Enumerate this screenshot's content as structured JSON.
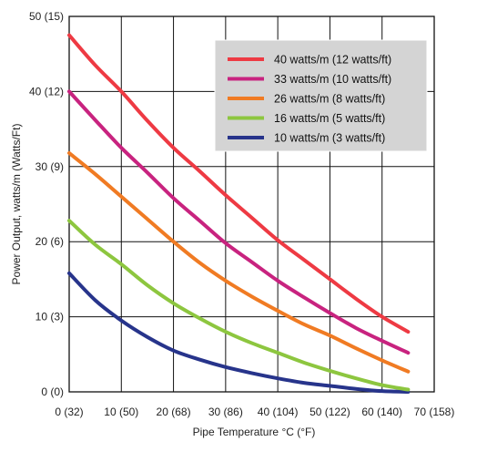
{
  "chart_data": {
    "type": "line",
    "title": "",
    "xlabel": "Pipe Temperature °C (°F)",
    "ylabel": "Power Output, watts/m (Watts/Ft)",
    "xlim": [
      0,
      70
    ],
    "ylim": [
      0,
      50
    ],
    "grid": true,
    "legend_position": "top-right",
    "x_ticks": [
      {
        "value": 0,
        "label": "0 (32)"
      },
      {
        "value": 10,
        "label": "10 (50)"
      },
      {
        "value": 20,
        "label": "20 (68)"
      },
      {
        "value": 30,
        "label": "30 (86)"
      },
      {
        "value": 40,
        "label": "40 (104)"
      },
      {
        "value": 50,
        "label": "50 (122)"
      },
      {
        "value": 60,
        "label": "60 (140)"
      },
      {
        "value": 70,
        "label": "70 (158)"
      }
    ],
    "y_ticks": [
      {
        "value": 0,
        "label": "0 (0)"
      },
      {
        "value": 10,
        "label": "10 (3)"
      },
      {
        "value": 20,
        "label": "20 (6)"
      },
      {
        "value": 30,
        "label": "30 (9)"
      },
      {
        "value": 40,
        "label": "40 (12)"
      },
      {
        "value": 50,
        "label": "50 (15)"
      }
    ],
    "x": [
      0,
      5,
      10,
      15,
      20,
      25,
      30,
      35,
      40,
      45,
      50,
      55,
      60,
      65
    ],
    "series": [
      {
        "name": "40 watts/m (12 watts/ft)",
        "color": "#ee3a43",
        "values": [
          47.5,
          43.5,
          40.0,
          36.1,
          32.5,
          29.4,
          26.2,
          23.2,
          20.2,
          17.6,
          15.0,
          12.4,
          10.0,
          8.0
        ]
      },
      {
        "name": "33 watts/m (10 watts/ft)",
        "color": "#c8237f",
        "values": [
          40.0,
          36.2,
          32.5,
          29.2,
          25.8,
          22.8,
          19.8,
          17.3,
          14.8,
          12.6,
          10.5,
          8.5,
          6.8,
          5.2
        ]
      },
      {
        "name": "26 watts/m (8 watts/ft)",
        "color": "#f07b23",
        "values": [
          31.8,
          29.0,
          26.0,
          23.0,
          20.0,
          17.2,
          14.8,
          12.7,
          10.8,
          9.0,
          7.5,
          5.8,
          4.2,
          2.7
        ]
      },
      {
        "name": "16 watts/m (5 watts/ft)",
        "color": "#8dc63f",
        "values": [
          22.8,
          19.6,
          17.0,
          14.2,
          11.8,
          9.8,
          8.0,
          6.5,
          5.2,
          3.9,
          2.8,
          1.8,
          0.9,
          0.3
        ]
      },
      {
        "name": "10 watts/m (3 watts/ft)",
        "color": "#27348b",
        "values": [
          15.8,
          12.2,
          9.5,
          7.3,
          5.5,
          4.3,
          3.3,
          2.5,
          1.8,
          1.2,
          0.8,
          0.4,
          0.1,
          0.0
        ]
      }
    ]
  }
}
